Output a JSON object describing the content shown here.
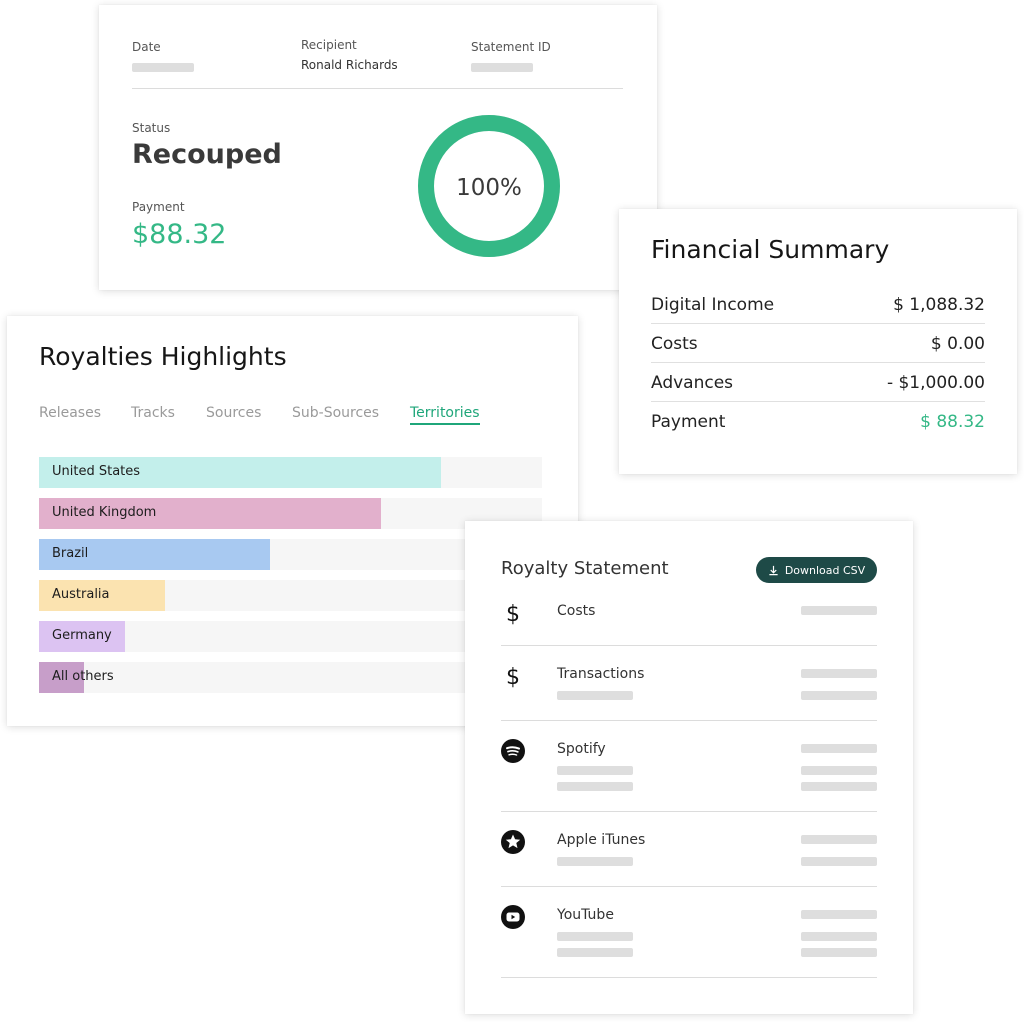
{
  "statement_header": {
    "date_label": "Date",
    "recipient_label": "Recipient",
    "recipient_value": "Ronald Richards",
    "statement_id_label": "Statement ID",
    "status_label": "Status",
    "status_value": "Recouped",
    "payment_label": "Payment",
    "payment_value": "$88.32",
    "recoup_percent": 100,
    "recoup_percent_label": "100%",
    "accent_color": "#34b886"
  },
  "financial_summary": {
    "title": "Financial Summary",
    "rows": [
      {
        "label": "Digital Income",
        "value": "$ 1,088.32"
      },
      {
        "label": "Costs",
        "value": "$ 0.00"
      },
      {
        "label": "Advances",
        "value": "- $1,000.00"
      },
      {
        "label": "Payment",
        "value": "$ 88.32"
      }
    ],
    "payment_color": "#34b886"
  },
  "royalties_highlights": {
    "title": "Royalties Highlights",
    "tabs": [
      {
        "label": "Releases",
        "active": false
      },
      {
        "label": "Tracks",
        "active": false
      },
      {
        "label": "Sources",
        "active": false
      },
      {
        "label": "Sub-Sources",
        "active": false
      },
      {
        "label": "Territories",
        "active": true
      }
    ],
    "territories": [
      {
        "label": "United States",
        "share": 0.8,
        "color": "#c3efeb"
      },
      {
        "label": "United Kingdom",
        "share": 0.68,
        "color": "#e2b0cc"
      },
      {
        "label": "Brazil",
        "share": 0.46,
        "color": "#a8c9f1"
      },
      {
        "label": "Australia",
        "share": 0.25,
        "color": "#fbe3b0"
      },
      {
        "label": "Germany",
        "share": 0.17,
        "color": "#dcc3f2"
      },
      {
        "label": "All others",
        "share": 0.09,
        "color": "#c79ec9"
      }
    ]
  },
  "royalty_statement": {
    "title": "Royalty Statement",
    "download_label": "Download CSV",
    "button_color": "#1e4a47",
    "rows": [
      {
        "name": "Costs",
        "icon": "dollar-icon"
      },
      {
        "name": "Transactions",
        "icon": "dollar-icon"
      },
      {
        "name": "Spotify",
        "icon": "spotify-icon"
      },
      {
        "name": "Apple iTunes",
        "icon": "star-icon"
      },
      {
        "name": "YouTube",
        "icon": "youtube-icon"
      }
    ]
  }
}
